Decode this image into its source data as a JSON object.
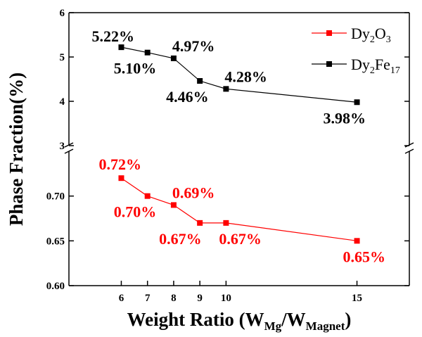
{
  "chart_data": {
    "type": "line",
    "xlabel": "Weight Ratio (W",
    "xlabel_sub1": "Mg",
    "xlabel_mid": "/W",
    "xlabel_sub2": "Magnet",
    "xlabel_end": ")",
    "ylabel": "Phase Fraction(%)",
    "x": [
      6,
      7,
      8,
      9,
      10,
      15
    ],
    "x_ticks": [
      6,
      7,
      8,
      9,
      10,
      15
    ],
    "xlim": [
      4,
      17
    ],
    "y_break": true,
    "upper_ylim": [
      3,
      6
    ],
    "upper_ticks": [
      "3",
      "4",
      "5",
      "6"
    ],
    "lower_ylim": [
      0.6,
      0.75
    ],
    "lower_ticks": [
      "0.60",
      "0.65",
      "0.70"
    ],
    "legend_position": "top-right",
    "series": [
      {
        "name": "Dy",
        "name_sub1": "2",
        "name_mid": "O",
        "name_sub2": "3",
        "panel": "lower",
        "color": "#ff0000",
        "values": [
          0.72,
          0.7,
          0.69,
          0.67,
          0.67,
          0.65
        ],
        "labels": [
          "0.72%",
          "0.70%",
          "0.69%",
          "0.67%",
          "0.67%",
          "0.65%"
        ]
      },
      {
        "name": "Dy",
        "name_sub1": "2",
        "name_mid": "Fe",
        "name_sub2": "17",
        "panel": "upper",
        "color": "#000000",
        "values": [
          5.22,
          5.1,
          4.97,
          4.46,
          4.28,
          3.98
        ],
        "labels": [
          "5.22%",
          "5.10%",
          "4.97%",
          "4.46%",
          "4.28%",
          "3.98%"
        ]
      }
    ]
  }
}
